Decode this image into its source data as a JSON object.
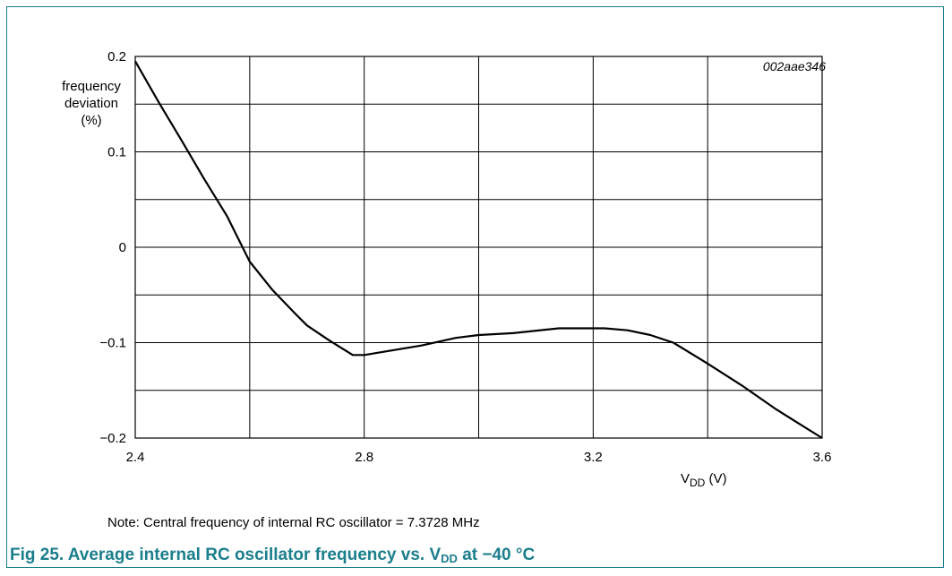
{
  "chart_data": {
    "type": "line",
    "title": "",
    "code": "002aae346",
    "ylabel": [
      "frequency",
      "deviation",
      "(%)"
    ],
    "xlabel_main": "V",
    "xlabel_sub": "DD",
    "xlabel_unit": " (V)",
    "xlim": [
      2.4,
      3.6
    ],
    "ylim": [
      -0.2,
      0.2
    ],
    "xticks": [
      2.4,
      2.8,
      3.2,
      3.6
    ],
    "xtick_labels": [
      "2.4",
      "2.8",
      "3.2",
      "3.6"
    ],
    "yticks": [
      -0.2,
      -0.1,
      0,
      0.1,
      0.2
    ],
    "ytick_labels": [
      "−0.2",
      "−0.1",
      "0",
      "0.1",
      "0.2"
    ],
    "grid": true,
    "series": [
      {
        "x": [
          2.4,
          2.44,
          2.48,
          2.52,
          2.56,
          2.6,
          2.64,
          2.68,
          2.7,
          2.74,
          2.78,
          2.8,
          2.84,
          2.9,
          2.96,
          3.0,
          3.06,
          3.14,
          3.22,
          3.26,
          3.3,
          3.34,
          3.4,
          3.46,
          3.52,
          3.6
        ],
        "y": [
          0.195,
          0.153,
          0.113,
          0.072,
          0.033,
          -0.015,
          -0.045,
          -0.07,
          -0.082,
          -0.098,
          -0.113,
          -0.113,
          -0.109,
          -0.103,
          -0.095,
          -0.092,
          -0.09,
          -0.085,
          -0.085,
          -0.087,
          -0.092,
          -0.1,
          -0.122,
          -0.145,
          -0.17,
          -0.2
        ]
      }
    ]
  },
  "note": "Note: Central frequency of internal RC oscillator = 7.3728 MHz",
  "caption": {
    "prefix": "Fig 25.   Average internal RC oscillator frequency vs. V",
    "sub": "DD",
    "suffix": " at −40 °C"
  }
}
